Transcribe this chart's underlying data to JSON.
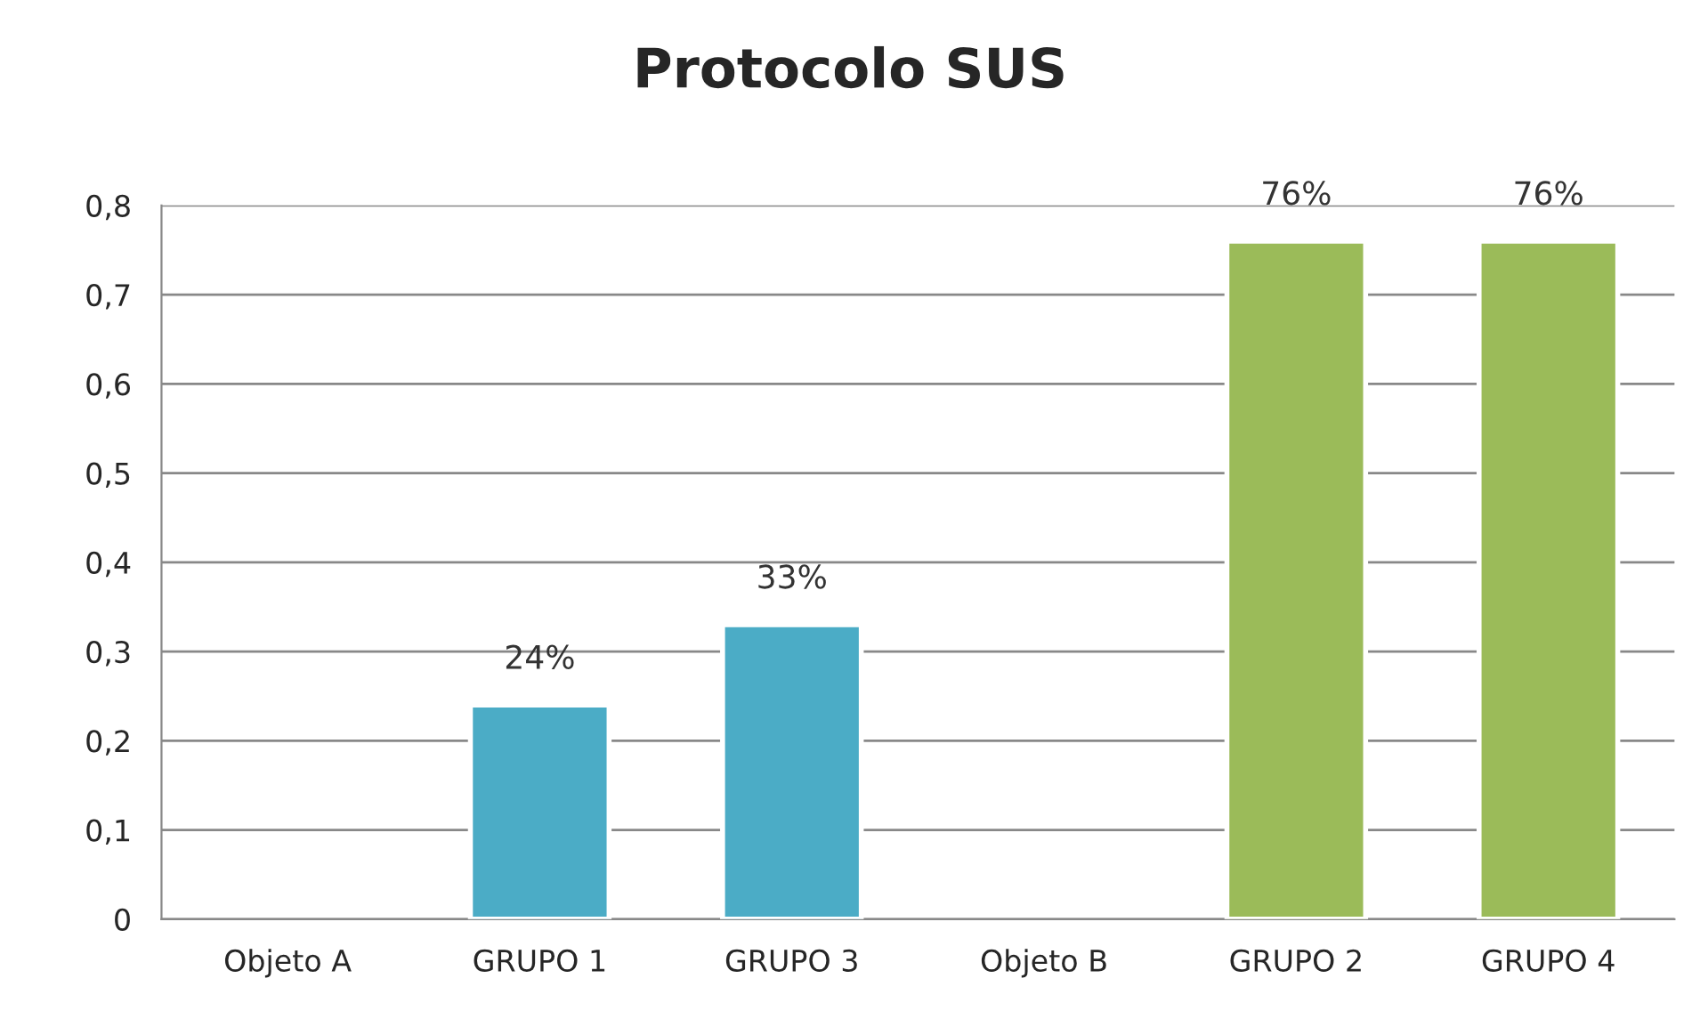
{
  "chart_data": {
    "type": "bar",
    "title": "Protocolo SUS",
    "categories": [
      "Objeto A",
      "GRUPO 1",
      "GRUPO 3",
      "Objeto B",
      "GRUPO 2",
      "GRUPO 4"
    ],
    "values": [
      null,
      0.24,
      0.33,
      null,
      0.76,
      0.76
    ],
    "colors": [
      "#4bacc6",
      "#4bacc6",
      "#4bacc6",
      "#9bbb59",
      "#9bbb59",
      "#9bbb59"
    ],
    "value_labels": [
      null,
      "24%",
      "33%",
      null,
      "76%",
      "76%"
    ],
    "ylim": [
      0,
      0.8
    ],
    "yticks": [
      {
        "value": 0,
        "label": "0"
      },
      {
        "value": 0.1,
        "label": "0,1"
      },
      {
        "value": 0.2,
        "label": "0,2"
      },
      {
        "value": 0.3,
        "label": "0,3"
      },
      {
        "value": 0.4,
        "label": "0,4"
      },
      {
        "value": 0.5,
        "label": "0,5"
      },
      {
        "value": 0.6,
        "label": "0,6"
      },
      {
        "value": 0.7,
        "label": "0,7"
      },
      {
        "value": 0.8,
        "label": "0,8"
      }
    ],
    "grid": "y",
    "legend": false
  }
}
